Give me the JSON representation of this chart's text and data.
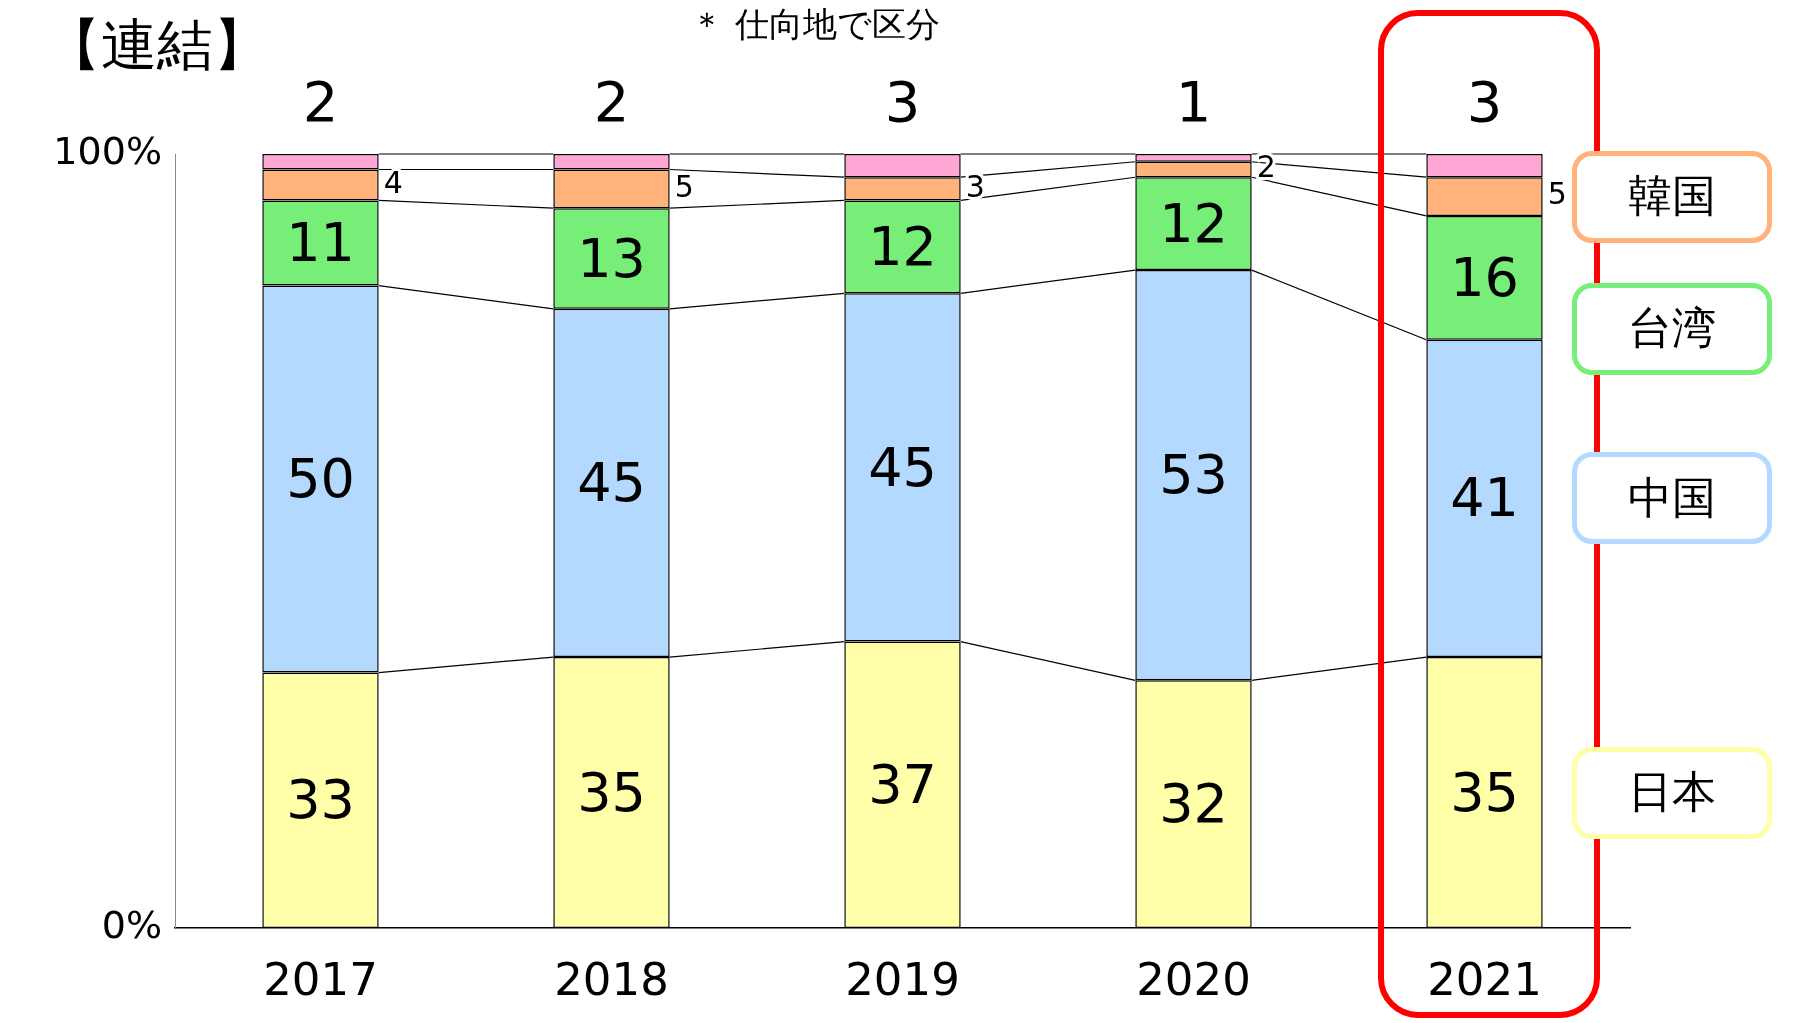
{
  "chart_data": {
    "type": "bar",
    "title": "【連結】",
    "annotations": [
      "＊ 仕向地で区分"
    ],
    "categories": [
      "2017",
      "2018",
      "2019",
      "2020",
      "2021"
    ],
    "stacked": true,
    "ylim": [
      0,
      100
    ],
    "yticks": [
      {
        "value": 0,
        "label": "0%"
      },
      {
        "value": 100,
        "label": "100%"
      }
    ],
    "grid": false,
    "legend": "right",
    "data_labels": true,
    "series": [
      {
        "name": "日本",
        "color": "#ffffaa",
        "values": [
          33,
          35,
          37,
          32,
          35
        ]
      },
      {
        "name": "中国",
        "color": "#b3d9ff",
        "values": [
          50,
          45,
          45,
          53,
          41
        ]
      },
      {
        "name": "台湾",
        "color": "#77ee77",
        "values": [
          11,
          13,
          12,
          12,
          16
        ]
      },
      {
        "name": "韓国",
        "color": "#ffb37a",
        "values": [
          4,
          5,
          3,
          2,
          5
        ]
      },
      {
        "color": "#ffa6d5",
        "values": [
          2,
          2,
          3,
          1,
          3
        ]
      }
    ]
  }
}
